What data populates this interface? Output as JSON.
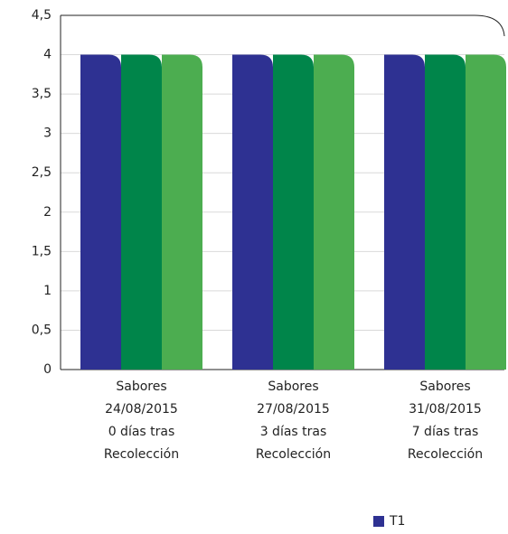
{
  "chart_data": {
    "type": "bar",
    "categories": [
      [
        "Sabores",
        "24/08/2015",
        "0 días tras",
        "Recolección"
      ],
      [
        "Sabores",
        "27/08/2015",
        "3 días tras",
        "Recolección"
      ],
      [
        "Sabores",
        "31/08/2015",
        "7 días tras",
        "Recolección"
      ]
    ],
    "series": [
      {
        "name": "T1",
        "color": "#2e3192",
        "values": [
          4,
          4,
          4
        ]
      },
      {
        "color": "#00854a",
        "values": [
          4,
          4,
          4
        ]
      },
      {
        "color": "#4cad50",
        "values": [
          4,
          4,
          4
        ]
      }
    ],
    "ylim": [
      0,
      4.5
    ],
    "yticks": [
      0,
      {
        "value": 0.5,
        "label": "0,5"
      },
      1,
      {
        "value": 1.5,
        "label": "1,5"
      },
      2,
      {
        "value": 2.5,
        "label": "2,5"
      },
      3,
      {
        "value": 3.5,
        "label": "3,5"
      },
      4,
      {
        "value": 4.5,
        "label": "4,5"
      }
    ],
    "grid": true,
    "legend": "bottom-right"
  }
}
